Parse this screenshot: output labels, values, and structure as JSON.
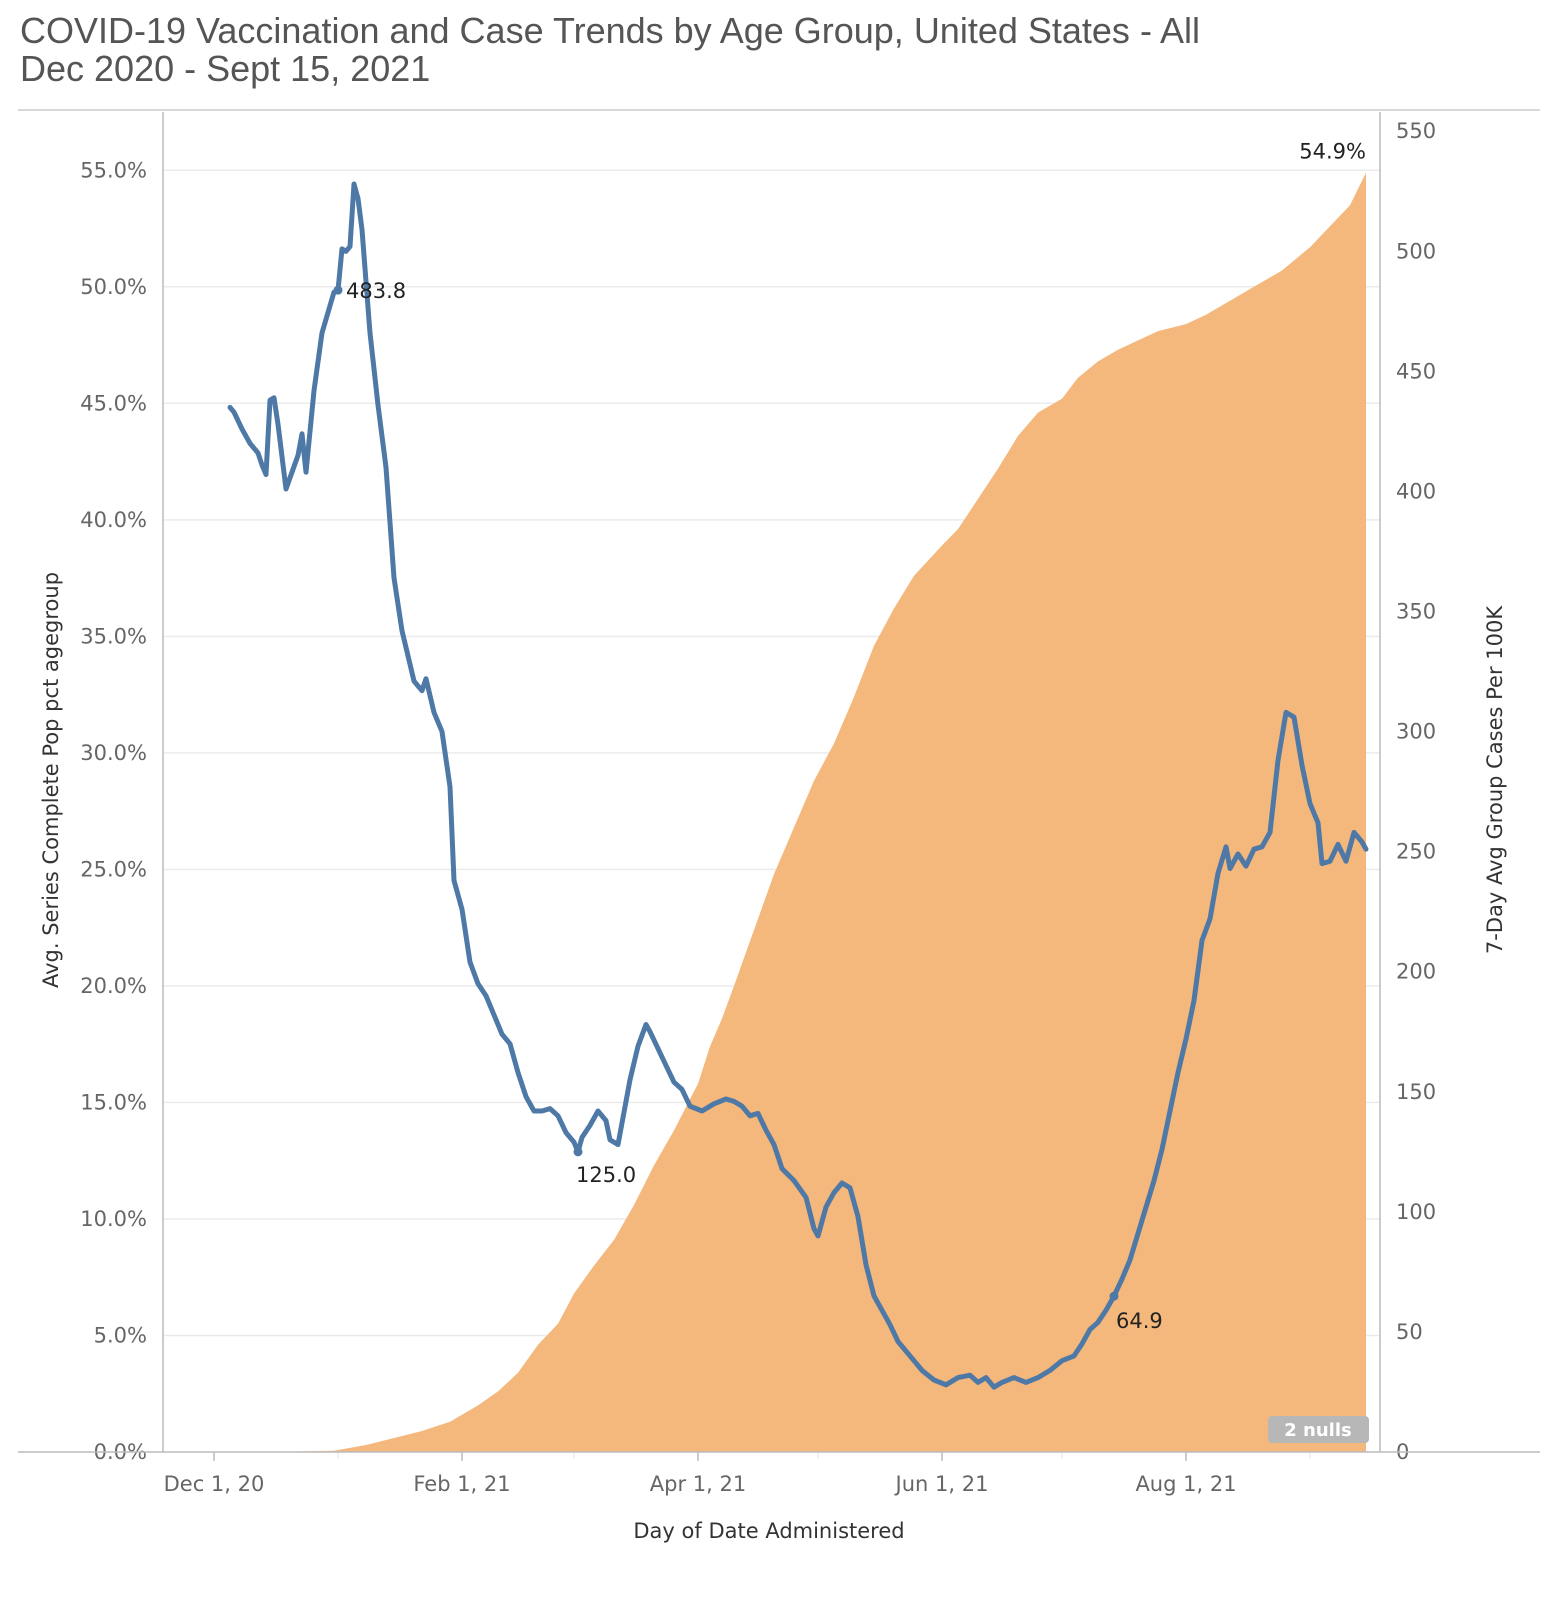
{
  "title_line1": "COVID-19 Vaccination and Case Trends by Age Group, United States - All",
  "title_line2": "Dec 2020 - Sept 15, 2021",
  "colors": {
    "area": "#F4B77C",
    "line": "#4E79A7",
    "grid": "#EBEBEB",
    "axis": "#BBBBBB",
    "nulls_bg": "#B7B7B7"
  },
  "chart_data": {
    "type": "area+line (dual axis)",
    "xlabel": "Day of Date Administered",
    "ylabel_left": "Avg. Series Complete Pop pct agegroup",
    "ylabel_right": "7-Day Avg Group Cases Per 100K",
    "x_ticks": [
      "Dec 1, 20",
      "Feb 1, 21",
      "Apr 1, 21",
      "Jun 1, 21",
      "Aug 1, 21"
    ],
    "y_left_ticks": [
      "0.0%",
      "5.0%",
      "10.0%",
      "15.0%",
      "20.0%",
      "25.0%",
      "30.0%",
      "35.0%",
      "40.0%",
      "45.0%",
      "50.0%",
      "55.0%"
    ],
    "y_left_range": [
      0,
      57.5
    ],
    "y_right_ticks": [
      "0",
      "50",
      "100",
      "150",
      "200",
      "250",
      "300",
      "350",
      "400",
      "450",
      "500",
      "550"
    ],
    "y_right_range": [
      0,
      558
    ],
    "null_badge": "2 nulls",
    "series": [
      {
        "name": "Avg. Series Complete Pop pct agegroup",
        "kind": "area",
        "axis": "left",
        "points": [
          [
            "2020-12-14",
            0.0
          ],
          [
            "2020-12-31",
            0.05
          ],
          [
            "2021-01-08",
            0.3
          ],
          [
            "2021-01-15",
            0.6
          ],
          [
            "2021-01-22",
            0.9
          ],
          [
            "2021-01-29",
            1.3
          ],
          [
            "2021-02-01",
            1.6
          ],
          [
            "2021-02-05",
            2.0
          ],
          [
            "2021-02-10",
            2.6
          ],
          [
            "2021-02-15",
            3.4
          ],
          [
            "2021-02-20",
            4.6
          ],
          [
            "2021-02-25",
            5.5
          ],
          [
            "2021-03-01",
            6.8
          ],
          [
            "2021-03-06",
            8.0
          ],
          [
            "2021-03-11",
            9.1
          ],
          [
            "2021-03-16",
            10.6
          ],
          [
            "2021-03-21",
            12.3
          ],
          [
            "2021-03-26",
            13.8
          ],
          [
            "2021-04-01",
            15.8
          ],
          [
            "2021-04-04",
            17.4
          ],
          [
            "2021-04-07",
            18.6
          ],
          [
            "2021-04-10",
            20.0
          ],
          [
            "2021-04-15",
            22.4
          ],
          [
            "2021-04-20",
            24.8
          ],
          [
            "2021-04-25",
            26.8
          ],
          [
            "2021-04-30",
            28.8
          ],
          [
            "2021-05-05",
            30.4
          ],
          [
            "2021-05-10",
            32.4
          ],
          [
            "2021-05-15",
            34.6
          ],
          [
            "2021-05-20",
            36.2
          ],
          [
            "2021-05-25",
            37.6
          ],
          [
            "2021-06-01",
            38.9
          ],
          [
            "2021-06-05",
            39.6
          ],
          [
            "2021-06-10",
            40.9
          ],
          [
            "2021-06-15",
            42.2
          ],
          [
            "2021-06-20",
            43.6
          ],
          [
            "2021-06-25",
            44.6
          ],
          [
            "2021-07-01",
            45.2
          ],
          [
            "2021-07-05",
            46.1
          ],
          [
            "2021-07-10",
            46.8
          ],
          [
            "2021-07-15",
            47.3
          ],
          [
            "2021-07-20",
            47.7
          ],
          [
            "2021-07-25",
            48.1
          ],
          [
            "2021-08-01",
            48.4
          ],
          [
            "2021-08-06",
            48.8
          ],
          [
            "2021-08-12",
            49.4
          ],
          [
            "2021-08-18",
            50.0
          ],
          [
            "2021-08-25",
            50.7
          ],
          [
            "2021-09-01",
            51.7
          ],
          [
            "2021-09-06",
            52.6
          ],
          [
            "2021-09-11",
            53.5
          ],
          [
            "2021-09-15",
            54.9
          ]
        ]
      },
      {
        "name": "7-Day Avg Group Cases Per 100K",
        "kind": "line",
        "axis": "right",
        "points": [
          [
            "2020-12-05",
            435
          ],
          [
            "2020-12-06",
            433
          ],
          [
            "2020-12-08",
            426
          ],
          [
            "2020-12-10",
            420
          ],
          [
            "2020-12-12",
            416
          ],
          [
            "2020-12-13",
            411
          ],
          [
            "2020-12-14",
            407
          ],
          [
            "2020-12-15",
            438
          ],
          [
            "2020-12-16",
            439
          ],
          [
            "2020-12-17",
            428
          ],
          [
            "2020-12-19",
            401
          ],
          [
            "2020-12-22",
            415
          ],
          [
            "2020-12-23",
            424
          ],
          [
            "2020-12-24",
            408
          ],
          [
            "2020-12-26",
            442
          ],
          [
            "2020-12-28",
            466
          ],
          [
            "2020-12-31",
            483
          ],
          [
            "2021-01-01",
            483.8
          ],
          [
            "2021-01-02",
            501
          ],
          [
            "2021-01-03",
            500
          ],
          [
            "2021-01-04",
            502
          ],
          [
            "2021-01-05",
            528
          ],
          [
            "2021-01-06",
            522
          ],
          [
            "2021-01-07",
            509
          ],
          [
            "2021-01-09",
            466
          ],
          [
            "2021-01-11",
            436
          ],
          [
            "2021-01-13",
            410
          ],
          [
            "2021-01-15",
            364
          ],
          [
            "2021-01-17",
            342
          ],
          [
            "2021-01-20",
            321
          ],
          [
            "2021-01-22",
            317
          ],
          [
            "2021-01-23",
            322
          ],
          [
            "2021-01-25",
            308
          ],
          [
            "2021-01-27",
            300
          ],
          [
            "2021-01-29",
            277
          ],
          [
            "2021-01-30",
            238
          ],
          [
            "2021-02-01",
            226
          ],
          [
            "2021-02-03",
            204
          ],
          [
            "2021-02-05",
            195
          ],
          [
            "2021-02-07",
            190
          ],
          [
            "2021-02-09",
            182
          ],
          [
            "2021-02-11",
            174
          ],
          [
            "2021-02-13",
            170
          ],
          [
            "2021-02-15",
            158
          ],
          [
            "2021-02-17",
            148
          ],
          [
            "2021-02-19",
            142
          ],
          [
            "2021-02-21",
            142
          ],
          [
            "2021-02-23",
            143
          ],
          [
            "2021-02-25",
            140
          ],
          [
            "2021-02-27",
            133
          ],
          [
            "2021-03-01",
            129
          ],
          [
            "2021-03-02",
            125
          ],
          [
            "2021-03-03",
            131
          ],
          [
            "2021-03-05",
            136
          ],
          [
            "2021-03-07",
            142
          ],
          [
            "2021-03-09",
            138
          ],
          [
            "2021-03-10",
            130
          ],
          [
            "2021-03-12",
            128
          ],
          [
            "2021-03-15",
            155
          ],
          [
            "2021-03-17",
            169
          ],
          [
            "2021-03-19",
            178
          ],
          [
            "2021-03-20",
            175
          ],
          [
            "2021-03-22",
            168
          ],
          [
            "2021-03-24",
            161
          ],
          [
            "2021-03-26",
            154
          ],
          [
            "2021-03-28",
            151
          ],
          [
            "2021-03-30",
            144
          ],
          [
            "2021-04-02",
            142
          ],
          [
            "2021-04-05",
            145
          ],
          [
            "2021-04-08",
            147
          ],
          [
            "2021-04-10",
            146
          ],
          [
            "2021-04-12",
            144
          ],
          [
            "2021-04-14",
            140
          ],
          [
            "2021-04-16",
            141
          ],
          [
            "2021-04-18",
            134
          ],
          [
            "2021-04-20",
            128
          ],
          [
            "2021-04-22",
            118
          ],
          [
            "2021-04-25",
            113
          ],
          [
            "2021-04-28",
            106
          ],
          [
            "2021-04-30",
            93
          ],
          [
            "2021-05-01",
            90
          ],
          [
            "2021-05-03",
            102
          ],
          [
            "2021-05-05",
            108
          ],
          [
            "2021-05-07",
            112
          ],
          [
            "2021-05-09",
            110
          ],
          [
            "2021-05-11",
            98
          ],
          [
            "2021-05-13",
            78
          ],
          [
            "2021-05-15",
            65
          ],
          [
            "2021-05-17",
            59
          ],
          [
            "2021-05-19",
            53
          ],
          [
            "2021-05-21",
            46
          ],
          [
            "2021-05-23",
            42
          ],
          [
            "2021-05-25",
            38
          ],
          [
            "2021-05-27",
            34
          ],
          [
            "2021-05-30",
            30
          ],
          [
            "2021-06-02",
            28
          ],
          [
            "2021-06-05",
            31
          ],
          [
            "2021-06-08",
            32
          ],
          [
            "2021-06-10",
            29
          ],
          [
            "2021-06-12",
            31
          ],
          [
            "2021-06-14",
            27
          ],
          [
            "2021-06-16",
            29
          ],
          [
            "2021-06-19",
            31
          ],
          [
            "2021-06-22",
            29
          ],
          [
            "2021-06-25",
            31
          ],
          [
            "2021-06-28",
            34
          ],
          [
            "2021-07-01",
            38
          ],
          [
            "2021-07-04",
            40
          ],
          [
            "2021-07-06",
            45
          ],
          [
            "2021-07-08",
            51
          ],
          [
            "2021-07-10",
            54
          ],
          [
            "2021-07-12",
            59
          ],
          [
            "2021-07-14",
            64.9
          ],
          [
            "2021-07-16",
            72
          ],
          [
            "2021-07-18",
            80
          ],
          [
            "2021-07-20",
            91
          ],
          [
            "2021-07-22",
            102
          ],
          [
            "2021-07-24",
            113
          ],
          [
            "2021-07-26",
            126
          ],
          [
            "2021-07-28",
            142
          ],
          [
            "2021-07-30",
            158
          ],
          [
            "2021-08-01",
            172
          ],
          [
            "2021-08-03",
            188
          ],
          [
            "2021-08-05",
            213
          ],
          [
            "2021-08-07",
            222
          ],
          [
            "2021-08-09",
            241
          ],
          [
            "2021-08-11",
            252
          ],
          [
            "2021-08-12",
            243
          ],
          [
            "2021-08-14",
            249
          ],
          [
            "2021-08-16",
            244
          ],
          [
            "2021-08-18",
            251
          ],
          [
            "2021-08-20",
            252
          ],
          [
            "2021-08-22",
            258
          ],
          [
            "2021-08-24",
            288
          ],
          [
            "2021-08-26",
            308
          ],
          [
            "2021-08-28",
            306
          ],
          [
            "2021-08-30",
            286
          ],
          [
            "2021-09-01",
            270
          ],
          [
            "2021-09-03",
            262
          ],
          [
            "2021-09-04",
            245
          ],
          [
            "2021-09-06",
            246
          ],
          [
            "2021-09-08",
            253
          ],
          [
            "2021-09-10",
            246
          ],
          [
            "2021-09-12",
            258
          ],
          [
            "2021-09-14",
            254
          ],
          [
            "2021-09-15",
            251
          ]
        ]
      }
    ],
    "data_labels": [
      {
        "text": "483.8",
        "series": "7-Day Avg Group Cases Per 100K",
        "x": "2021-01-01",
        "y": 483.8,
        "pos": "right"
      },
      {
        "text": "125.0",
        "series": "7-Day Avg Group Cases Per 100K",
        "x": "2021-03-02",
        "y": 125.0,
        "pos": "below"
      },
      {
        "text": "64.9",
        "series": "7-Day Avg Group Cases Per 100K",
        "x": "2021-07-14",
        "y": 64.9,
        "pos": "below-right"
      },
      {
        "text": "54.9%",
        "series": "Avg. Series Complete Pop pct agegroup",
        "x": "2021-09-15",
        "y": 54.9,
        "pos": "above"
      }
    ]
  }
}
